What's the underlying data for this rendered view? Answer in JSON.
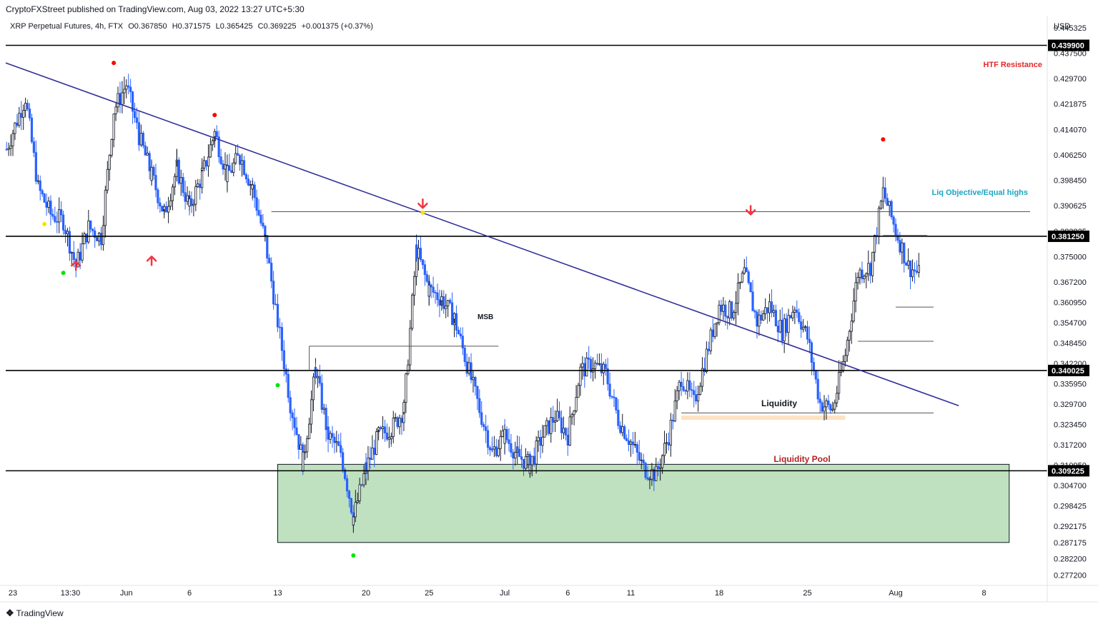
{
  "header": {
    "publisher_line": "CryptoFXStreet published on TradingView.com, Aug 03, 2022 13:27 UTC+5:30"
  },
  "legend": {
    "symbol": "XRP Perpetual Futures, 4h, FTX",
    "open": "O0.367850",
    "high": "H0.371575",
    "low": "L0.365425",
    "close": "C0.369225",
    "change": "+0.001375 (+0.37%)"
  },
  "footer": {
    "brand": "TradingView"
  },
  "colors": {
    "up": "#131722",
    "down": "#2962ff",
    "trendline": "#2f2f9a",
    "zone_fill": "#bfe1bf",
    "liquidity_fill": "#fde2c3",
    "resistance_text": "#e32929",
    "liq_objective_text": "#1ba5c4",
    "pool_text": "#b22222",
    "arrow": "#f23645",
    "dot_red": "#ff0000",
    "dot_green": "#00e600",
    "dot_yellow": "#f5e400"
  },
  "chart_data": {
    "type": "candlestick",
    "currency_label": "USD",
    "ylim": [
      0.274,
      0.449
    ],
    "y_ticks": [
      "0.445325",
      "0.437500",
      "0.429700",
      "0.421875",
      "0.414070",
      "0.406250",
      "0.398450",
      "0.390625",
      "0.382825",
      "0.375000",
      "0.367200",
      "0.360950",
      "0.354700",
      "0.348450",
      "0.342200",
      "0.335950",
      "0.329700",
      "0.323450",
      "0.317200",
      "0.310950",
      "0.304700",
      "0.298425",
      "0.292175",
      "0.287175",
      "0.282200",
      "0.277200"
    ],
    "x_ticks": [
      "23",
      "13:30",
      "Jun",
      "6",
      "13",
      "20",
      "25",
      "Jul",
      "6",
      "11",
      "18",
      "25",
      "Aug",
      "8"
    ],
    "price_levels": [
      {
        "value": 0.4399,
        "label": "0.439900"
      },
      {
        "value": 0.38125,
        "label": "0.381250"
      },
      {
        "value": 0.340025,
        "label": "0.340025"
      },
      {
        "value": 0.309225,
        "label": "0.309225"
      }
    ],
    "annotations": {
      "htf_resistance": "HTF Resistance",
      "liq_objective": "Liq Objective/Equal highs",
      "msb": "MSB",
      "liquidity": "Liquidity",
      "liquidity_pool": "Liquidity Pool"
    },
    "zones": [
      {
        "name": "liquidity-pool",
        "from": "Jun 13",
        "to": "Aug 10",
        "high": 0.3112,
        "low": 0.2872
      },
      {
        "name": "liquidity",
        "from": "Jul 15",
        "to": "Jul 28",
        "high": 0.3262,
        "low": 0.3252
      }
    ],
    "trendline": {
      "from": [
        "May 23",
        0.4345
      ],
      "to": [
        "Aug 6",
        0.3292
      ]
    },
    "key_path": [
      [
        "May 22 12:00",
        0.408
      ],
      [
        "May 24",
        0.424
      ],
      [
        "May 25",
        0.396
      ],
      [
        "May 26",
        0.388
      ],
      [
        "May 27",
        0.386
      ],
      [
        "May 28",
        0.372
      ],
      [
        "May 29",
        0.384
      ],
      [
        "May 30",
        0.381
      ],
      [
        "May 31",
        0.42
      ],
      [
        "Jun 1",
        0.428
      ],
      [
        "Jun 2",
        0.412
      ],
      [
        "Jun 3",
        0.4
      ],
      [
        "Jun 4",
        0.388
      ],
      [
        "Jun 5",
        0.402
      ],
      [
        "Jun 6",
        0.39
      ],
      [
        "Jun 7",
        0.4
      ],
      [
        "Jun 8",
        0.413
      ],
      [
        "Jun 9",
        0.4
      ],
      [
        "Jun 10",
        0.406
      ],
      [
        "Jun 11",
        0.396
      ],
      [
        "Jun 12",
        0.38
      ],
      [
        "Jun 13",
        0.355
      ],
      [
        "Jun 14",
        0.33
      ],
      [
        "Jun 15",
        0.312
      ],
      [
        "Jun 16",
        0.34
      ],
      [
        "Jun 17",
        0.32
      ],
      [
        "Jun 18",
        0.315
      ],
      [
        "Jun 19",
        0.295
      ],
      [
        "Jun 20",
        0.31
      ],
      [
        "Jun 21",
        0.32
      ],
      [
        "Jun 22",
        0.322
      ],
      [
        "Jun 23",
        0.328
      ],
      [
        "Jun 24",
        0.377
      ],
      [
        "Jun 25",
        0.365
      ],
      [
        "Jun 26",
        0.362
      ],
      [
        "Jun 27",
        0.356
      ],
      [
        "Jun 28",
        0.342
      ],
      [
        "Jun 29",
        0.328
      ],
      [
        "Jun 30",
        0.315
      ],
      [
        "Jul 1",
        0.32
      ],
      [
        "Jul 2",
        0.314
      ],
      [
        "Jul 3",
        0.311
      ],
      [
        "Jul 4",
        0.32
      ],
      [
        "Jul 5",
        0.326
      ],
      [
        "Jul 6",
        0.32
      ],
      [
        "Jul 7",
        0.34
      ],
      [
        "Jul 8",
        0.342
      ],
      [
        "Jul 9",
        0.339
      ],
      [
        "Jul 10",
        0.325
      ],
      [
        "Jul 11",
        0.318
      ],
      [
        "Jul 12",
        0.31
      ],
      [
        "Jul 13",
        0.308
      ],
      [
        "Jul 14",
        0.32
      ],
      [
        "Jul 15",
        0.338
      ],
      [
        "Jul 16",
        0.33
      ],
      [
        "Jul 17",
        0.345
      ],
      [
        "Jul 18",
        0.36
      ],
      [
        "Jul 19",
        0.358
      ],
      [
        "Jul 20",
        0.37
      ],
      [
        "Jul 21",
        0.355
      ],
      [
        "Jul 22",
        0.36
      ],
      [
        "Jul 23",
        0.352
      ],
      [
        "Jul 24",
        0.36
      ],
      [
        "Jul 25",
        0.35
      ],
      [
        "Jul 26",
        0.33
      ],
      [
        "Jul 27",
        0.328
      ],
      [
        "Jul 28",
        0.345
      ],
      [
        "Jul 29",
        0.37
      ],
      [
        "Jul 30",
        0.372
      ],
      [
        "Jul 31",
        0.395
      ],
      [
        "Aug 1",
        0.383
      ],
      [
        "Aug 2",
        0.372
      ],
      [
        "Aug 3",
        0.3692
      ]
    ],
    "markers": [
      {
        "kind": "dot",
        "color": "dot_red",
        "at": [
          "May 31",
          0.4345
        ]
      },
      {
        "kind": "dot",
        "color": "dot_red",
        "at": [
          "Jun 8",
          0.4185
        ]
      },
      {
        "kind": "dot",
        "color": "dot_red",
        "at": [
          "Jul 31",
          0.411
        ]
      },
      {
        "kind": "dot",
        "color": "dot_yellow",
        "at": [
          "May 25 12:00",
          0.385
        ]
      },
      {
        "kind": "dot",
        "color": "dot_yellow",
        "at": [
          "Jun 24 12:00",
          0.3885
        ]
      },
      {
        "kind": "dot",
        "color": "dot_green",
        "at": [
          "May 27",
          0.37
        ]
      },
      {
        "kind": "dot",
        "color": "dot_green",
        "at": [
          "Jun 13",
          0.3355
        ]
      },
      {
        "kind": "dot",
        "color": "dot_green",
        "at": [
          "Jun 19",
          0.2832
        ]
      },
      {
        "kind": "arrow-up",
        "at": [
          "May 28",
          0.372
        ]
      },
      {
        "kind": "arrow-up",
        "at": [
          "Jun 3",
          0.3735
        ]
      },
      {
        "kind": "arrow-down",
        "at": [
          "Jun 24 12:00",
          0.3915
        ]
      },
      {
        "kind": "arrow-down",
        "at": [
          "Jul 20 12:00",
          0.3895
        ]
      }
    ]
  }
}
